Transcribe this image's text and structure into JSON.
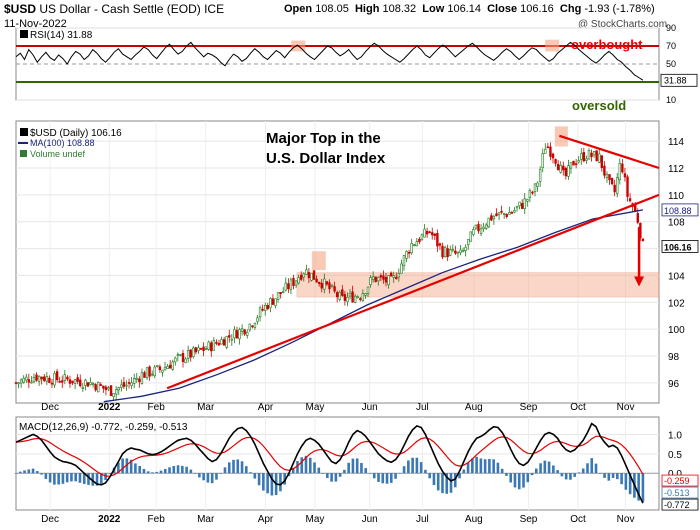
{
  "header": {
    "symbol": "$USD",
    "name": "US Dollar - Cash Settle (EOD)",
    "exchange": "ICE",
    "date": "11-Nov-2022",
    "watermark": "@ StockCharts.com",
    "ohlc": {
      "open_label": "Open",
      "open": "108.05",
      "high_label": "High",
      "high": "108.32",
      "low_label": "Low",
      "low": "106.14",
      "close_label": "Close",
      "close": "106.16",
      "chg_label": "Chg",
      "chg": "-1.93 (-1.78%)"
    }
  },
  "rsi": {
    "legend": "RSI(14) 31.88",
    "overbought_text": "overbought",
    "oversold_text": "oversold",
    "axis_ticks": [
      90,
      70,
      50,
      30,
      10
    ],
    "last_value": "31.88",
    "color_line": "#000000",
    "color_levels": "#cc0000",
    "color_oversold_text": "#336600",
    "series": [
      58,
      62,
      55,
      66,
      60,
      52,
      58,
      63,
      57,
      54,
      60,
      56,
      50,
      58,
      64,
      61,
      55,
      59,
      66,
      62,
      56,
      52,
      57,
      63,
      67,
      61,
      58,
      55,
      60,
      64,
      69,
      66,
      60,
      56,
      62,
      68,
      72,
      66,
      61,
      64,
      70,
      74,
      68,
      63,
      58,
      62,
      60,
      57,
      52,
      48,
      55,
      61,
      58,
      53,
      56,
      62,
      67,
      63,
      58,
      55,
      60,
      65,
      62,
      57,
      63,
      68,
      71,
      67,
      62,
      58,
      55,
      60,
      65,
      70,
      68,
      63,
      59,
      62,
      66,
      60,
      55,
      58,
      64,
      69,
      73,
      70,
      65,
      61,
      58,
      55,
      52,
      56,
      61,
      66,
      70,
      66,
      60,
      57,
      62,
      67,
      71,
      68,
      63,
      58,
      62,
      66,
      70,
      73,
      69,
      64,
      60,
      57,
      54,
      58,
      63,
      67,
      64,
      59,
      55,
      59,
      64,
      68,
      66,
      61,
      57,
      53,
      56,
      62,
      66,
      70,
      74,
      71,
      66,
      62,
      58,
      54,
      51,
      55,
      60,
      64,
      60,
      55,
      52,
      47,
      43,
      38,
      35,
      32
    ]
  },
  "price": {
    "legend_symbol": "$USD (Daily) 106.16",
    "legend_ma": "MA(100) 108.88",
    "legend_volume": "Volume undef",
    "annotation_line1": "Major Top in the",
    "annotation_line2": "U.S. Dollar Index",
    "axis_ticks": [
      114,
      112,
      110,
      108,
      106,
      104,
      102,
      100,
      98,
      96
    ],
    "ma_last": "108.88",
    "close_last": "106.16",
    "color_up": "#1a7a1a",
    "color_down": "#cc0000",
    "color_ma": "#1a237e",
    "color_trend": "#e60000",
    "color_zone": "#f4a582"
  },
  "macd": {
    "legend": "MACD(12,26,9) -0.772, -0.259, -0.513",
    "axis_ticks": [
      "1.0",
      "0.5",
      "0.0"
    ],
    "last_macd": "-0.772",
    "last_signal": "-0.259",
    "last_hist": "-0.513",
    "color_macd": "#000000",
    "color_signal": "#e60000",
    "color_hist": "#3a78b5",
    "series": [
      0.8,
      0.85,
      0.9,
      0.95,
      1.0,
      0.95,
      0.85,
      0.7,
      0.55,
      0.42,
      0.35,
      0.3,
      0.28,
      0.25,
      0.2,
      0.1,
      0.0,
      -0.1,
      -0.2,
      -0.28,
      -0.3,
      -0.25,
      -0.1,
      0.1,
      0.3,
      0.5,
      0.6,
      0.65,
      0.62,
      0.6,
      0.55,
      0.5,
      0.48,
      0.5,
      0.55,
      0.62,
      0.7,
      0.78,
      0.85,
      0.88,
      0.9,
      0.85,
      0.75,
      0.62,
      0.5,
      0.38,
      0.3,
      0.35,
      0.5,
      0.7,
      0.9,
      1.05,
      1.15,
      1.18,
      1.1,
      0.95,
      0.75,
      0.5,
      0.25,
      0.05,
      -0.15,
      -0.28,
      -0.3,
      -0.2,
      0.0,
      0.25,
      0.5,
      0.7,
      0.85,
      0.9,
      0.85,
      0.75,
      0.6,
      0.45,
      0.3,
      0.25,
      0.35,
      0.55,
      0.8,
      1.0,
      1.1,
      1.05,
      0.95,
      0.8,
      0.65,
      0.5,
      0.4,
      0.32,
      0.28,
      0.35,
      0.5,
      0.72,
      0.95,
      1.12,
      1.22,
      1.18,
      1.0,
      0.75,
      0.5,
      0.25,
      0.05,
      -0.1,
      -0.2,
      -0.15,
      0.05,
      0.3,
      0.55,
      0.75,
      0.9,
      0.95,
      1.02,
      1.12,
      1.2,
      1.18,
      1.05,
      0.85,
      0.62,
      0.4,
      0.25,
      0.2,
      0.28,
      0.45,
      0.65,
      0.85,
      1.0,
      1.05,
      1.0,
      0.9,
      0.72,
      0.6,
      0.55,
      0.6,
      0.72,
      0.85,
      1.05,
      1.28,
      1.2,
      0.95,
      0.8,
      0.68,
      0.72,
      0.65,
      0.45,
      0.2,
      -0.05,
      -0.3,
      -0.55,
      -0.772
    ]
  },
  "x_axis": {
    "labels": [
      "Dec",
      "2022",
      "Feb",
      "Mar",
      "Apr",
      "May",
      "Jun",
      "Jul",
      "Aug",
      "Sep",
      "Oct",
      "Nov"
    ],
    "bold": [
      "2022"
    ]
  },
  "chart_data": {
    "type": "line",
    "title": "$USD US Dollar - Cash Settle (EOD) ICE",
    "price_range": [
      94.5,
      115.5
    ],
    "close_path": [
      [
        "Dec",
        96.1
      ],
      [
        "2022",
        96.0
      ],
      [
        "Feb",
        95.5
      ],
      [
        "Mar",
        97.5
      ],
      [
        "Apr",
        98.8
      ],
      [
        "May",
        103.5
      ],
      [
        "Jun",
        102.0
      ],
      [
        "Jul",
        104.8
      ],
      [
        "Aug",
        106.0
      ],
      [
        "Sep",
        109.5
      ],
      [
        "late Sep",
        114.1
      ],
      [
        "Oct",
        111.5
      ],
      [
        "mid Oct",
        113.0
      ],
      [
        "Nov",
        111.0
      ],
      [
        "11-Nov-2022",
        106.16
      ]
    ],
    "ma100_path": [
      [
        "2022",
        95.0
      ],
      [
        "Mar",
        95.6
      ],
      [
        "Apr",
        96.8
      ],
      [
        "May",
        98.5
      ],
      [
        "Jun",
        100.5
      ],
      [
        "Jul",
        102.8
      ],
      [
        "Aug",
        104.8
      ],
      [
        "Sep",
        106.5
      ],
      [
        "Oct",
        108.0
      ],
      [
        "11-Nov-2022",
        108.88
      ]
    ],
    "support_zone": [
      102.4,
      104.2
    ],
    "rsi_levels": [
      70,
      30
    ],
    "rsi_last": 31.88,
    "ma100_last": 108.88,
    "last_close": 106.16
  }
}
